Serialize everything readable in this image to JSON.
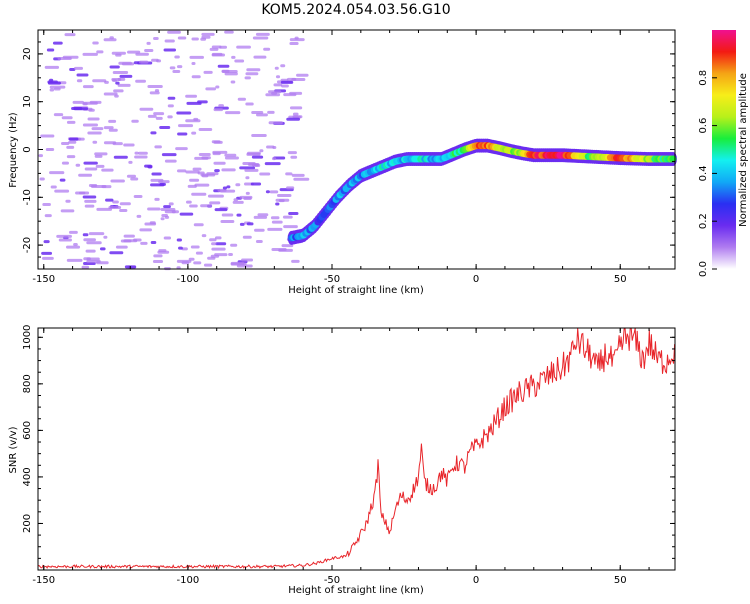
{
  "title": "KOM5.2024.054.03.56.G10",
  "colors": {
    "snr_line": "#e8262b",
    "axis": "#000000",
    "colormap": [
      "#ffffff",
      "#b07cf0",
      "#6a2cf0",
      "#2a2ff2",
      "#11a8f6",
      "#13f0f0",
      "#18ee3c",
      "#b8f01a",
      "#f7ee19",
      "#f5a415",
      "#f31a13",
      "#f01090"
    ]
  },
  "chart_data": [
    {
      "type": "heatmap",
      "name": "spectrogram",
      "xlabel": "Height of straight line (km)",
      "ylabel": "Frequency (Hz)",
      "xlim": [
        -152,
        69
      ],
      "ylim": [
        -25,
        25
      ],
      "xticks": [
        -150,
        -100,
        -50,
        0,
        50
      ],
      "yticks": [
        -20,
        -10,
        0,
        10,
        20
      ],
      "colorbar": {
        "label": "Normalized spectral amplitude",
        "range": [
          0,
          1
        ],
        "ticks": [
          "0.0",
          "0.2",
          "0.4",
          "0.6",
          "0.8"
        ]
      },
      "ridge": {
        "x": [
          -64,
          -60,
          -56,
          -52,
          -48,
          -44,
          -40,
          -36,
          -32,
          -28,
          -24,
          -20,
          -16,
          -12,
          -8,
          -4,
          0,
          4,
          8,
          12,
          16,
          20,
          30,
          40,
          50,
          60,
          69
        ],
        "freq": [
          -18.5,
          -18,
          -16,
          -13,
          -10,
          -7.5,
          -5.5,
          -4.5,
          -3.5,
          -2.5,
          -2,
          -2,
          -2,
          -2,
          -1,
          0,
          0.8,
          0.8,
          0.3,
          -0.3,
          -0.8,
          -1.2,
          -1.2,
          -1.5,
          -1.8,
          -2,
          -2
        ],
        "amplitude": [
          0.3,
          0.35,
          0.3,
          0.3,
          0.35,
          0.35,
          0.35,
          0.4,
          0.45,
          0.4,
          0.4,
          0.45,
          0.4,
          0.4,
          0.5,
          0.5,
          0.9,
          0.9,
          0.7,
          0.6,
          0.65,
          0.9,
          0.95,
          0.55,
          0.9,
          0.6,
          0.5
        ]
      },
      "noise_extent_x": [
        -152,
        -62
      ]
    },
    {
      "type": "line",
      "name": "snr",
      "xlabel": "Height of straight line (km)",
      "ylabel": "SNR (v/v)",
      "xlim": [
        -152,
        69
      ],
      "ylim": [
        0,
        1040
      ],
      "xticks": [
        -150,
        -100,
        -50,
        0,
        50
      ],
      "yticks": [
        200,
        400,
        600,
        800,
        1000
      ],
      "series": [
        {
          "x": [
            -152,
            -130,
            -110,
            -90,
            -70,
            -60,
            -55,
            -50,
            -45,
            -42,
            -38,
            -35,
            -34,
            -33,
            -32,
            -30,
            -28,
            -26,
            -24,
            -22,
            -20,
            -19,
            -18,
            -16,
            -14,
            -12,
            -10,
            -8,
            -6,
            -4,
            -2,
            0,
            5,
            10,
            15,
            20,
            25,
            30,
            33,
            35,
            38,
            40,
            42,
            45,
            48,
            50,
            53,
            55,
            58,
            60,
            63,
            66,
            69
          ],
          "y": [
            15,
            15,
            15,
            15,
            15,
            20,
            30,
            50,
            60,
            110,
            200,
            330,
            460,
            230,
            220,
            160,
            260,
            320,
            300,
            340,
            400,
            520,
            380,
            350,
            360,
            420,
            380,
            450,
            460,
            440,
            510,
            530,
            600,
            700,
            760,
            790,
            830,
            870,
            920,
            1000,
            940,
            920,
            860,
            930,
            880,
            960,
            1010,
            990,
            900,
            980,
            900,
            900,
            950
          ]
        }
      ]
    }
  ]
}
